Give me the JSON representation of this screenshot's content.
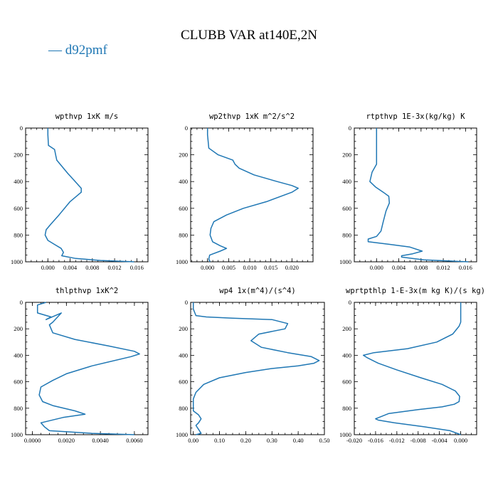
{
  "title": "CLUBB VAR at140E,2N",
  "legend": {
    "label": "— d92pmf",
    "color": "#1f77b4"
  },
  "chart_data": [
    {
      "type": "line",
      "title": "wpthvp  1xK m/s",
      "xlim": [
        -0.004,
        0.018
      ],
      "ylim": [
        1000,
        0
      ],
      "xticks": [
        0.0,
        0.004,
        0.008,
        0.012,
        0.016
      ],
      "xtick_labels": [
        "0.000",
        "0.004",
        "0.008",
        "0.012",
        "0.016"
      ],
      "yticks": [
        0,
        200,
        400,
        600,
        800,
        1000
      ],
      "ytick_labels": [
        "0",
        "200",
        "400",
        "600",
        "800",
        "1000"
      ],
      "series": [
        {
          "color": "#1f77b4",
          "x": [
            0.0,
            0.0,
            0.0001,
            0.0012,
            0.0014,
            0.0016,
            0.0026,
            0.0036,
            0.0047,
            0.006,
            0.006,
            0.004,
            0.002,
            0.0005,
            -0.0003,
            -0.0005,
            0.0,
            0.0012,
            0.0024,
            0.0028,
            0.0025,
            0.005,
            0.0095,
            0.0155
          ],
          "y": [
            0,
            50,
            130,
            160,
            200,
            240,
            290,
            340,
            390,
            450,
            480,
            550,
            650,
            720,
            760,
            800,
            840,
            870,
            900,
            930,
            955,
            975,
            990,
            1000
          ]
        }
      ]
    },
    {
      "type": "line",
      "title": "wp2thvp  1xK m^2/s^2",
      "xlim": [
        -0.004,
        0.025
      ],
      "ylim": [
        1000,
        0
      ],
      "xticks": [
        0.0,
        0.005,
        0.01,
        0.015,
        0.02
      ],
      "xtick_labels": [
        "0.000",
        "0.005",
        "0.010",
        "0.015",
        "0.020"
      ],
      "yticks": [
        0,
        200,
        400,
        600,
        800,
        1000
      ],
      "ytick_labels": [
        "0",
        "200",
        "400",
        "600",
        "800",
        "1000"
      ],
      "series": [
        {
          "color": "#1f77b4",
          "x": [
            0.0,
            0.0,
            0.0003,
            0.0025,
            0.006,
            0.0065,
            0.0075,
            0.011,
            0.0165,
            0.02,
            0.0215,
            0.02,
            0.014,
            0.0085,
            0.0045,
            0.0015,
            0.0008,
            0.0006,
            0.0012,
            0.003,
            0.0045,
            0.003,
            0.0005,
            0.0003,
            0.0006
          ],
          "y": [
            0,
            50,
            150,
            200,
            240,
            270,
            300,
            350,
            400,
            430,
            450,
            480,
            550,
            600,
            650,
            700,
            750,
            800,
            850,
            880,
            900,
            920,
            950,
            980,
            1000
          ]
        }
      ]
    },
    {
      "type": "line",
      "title": "rtpthvp  1E-3x(kg/kg) K",
      "xlim": [
        -0.004,
        0.018
      ],
      "ylim": [
        1000,
        0
      ],
      "xticks": [
        0.0,
        0.004,
        0.008,
        0.012,
        0.016
      ],
      "xtick_labels": [
        "0.000",
        "0.004",
        "0.008",
        "0.012",
        "0.016"
      ],
      "yticks": [
        0,
        200,
        400,
        600,
        800,
        1000
      ],
      "ytick_labels": [
        "0",
        "200",
        "400",
        "600",
        "800",
        "1000"
      ],
      "series": [
        {
          "color": "#1f77b4",
          "x": [
            0.0,
            0.0,
            0.0,
            -0.0008,
            -0.0012,
            -0.0002,
            0.0012,
            0.0022,
            0.0023,
            0.0017,
            0.0012,
            0.0008,
            0.0,
            -0.0015,
            -0.0015,
            0.0025,
            0.006,
            0.0082,
            0.0065,
            0.0045,
            0.0045,
            0.0085,
            0.0165
          ],
          "y": [
            0,
            100,
            270,
            330,
            400,
            440,
            480,
            510,
            560,
            620,
            700,
            770,
            810,
            830,
            850,
            870,
            890,
            920,
            940,
            955,
            965,
            985,
            1000
          ]
        }
      ]
    },
    {
      "type": "line",
      "title": "thlpthvp  1xK^2",
      "xlim": [
        -0.0004,
        0.0068
      ],
      "ylim": [
        1000,
        0
      ],
      "xticks": [
        0.0,
        0.002,
        0.004,
        0.006
      ],
      "xtick_labels": [
        "0.0000",
        "0.0020",
        "0.0040",
        "0.0060"
      ],
      "yticks": [
        0,
        200,
        400,
        600,
        800,
        1000
      ],
      "ytick_labels": [
        "0",
        "200",
        "400",
        "600",
        "800",
        "1000"
      ],
      "series": [
        {
          "color": "#1f77b4",
          "x": [
            0.0008,
            0.0003,
            0.0003,
            0.0011,
            0.0008,
            0.0017,
            0.0012,
            0.001,
            0.0012,
            0.0025,
            0.0045,
            0.006,
            0.0063,
            0.0058,
            0.0035,
            0.002,
            0.0012,
            0.0005,
            0.0004,
            0.0006,
            0.0012,
            0.0025,
            0.0031,
            0.0018,
            0.0005,
            0.0007,
            0.001,
            0.0035,
            0.006
          ],
          "y": [
            0,
            20,
            80,
            110,
            130,
            80,
            150,
            170,
            230,
            280,
            330,
            370,
            390,
            410,
            480,
            540,
            590,
            640,
            700,
            750,
            780,
            820,
            845,
            870,
            910,
            940,
            970,
            990,
            1000
          ]
        }
      ]
    },
    {
      "type": "line",
      "title": "wp4   1x(m^4)/(s^4)",
      "xlim": [
        -0.01,
        0.5
      ],
      "ylim": [
        1000,
        0
      ],
      "xticks": [
        0.0,
        0.1,
        0.2,
        0.3,
        0.4,
        0.5
      ],
      "xtick_labels": [
        "0.00",
        "0.10",
        "0.20",
        "0.30",
        "0.40",
        "0.50"
      ],
      "yticks": [
        0,
        200,
        400,
        600,
        800,
        1000
      ],
      "ytick_labels": [
        "0",
        "200",
        "400",
        "600",
        "800",
        "1000"
      ],
      "series": [
        {
          "color": "#1f77b4",
          "x": [
            0.0,
            0.0,
            0.01,
            0.05,
            0.15,
            0.3,
            0.36,
            0.35,
            0.25,
            0.22,
            0.26,
            0.36,
            0.45,
            0.48,
            0.46,
            0.4,
            0.3,
            0.2,
            0.1,
            0.04,
            0.01,
            0.0,
            0.0,
            0.0,
            0.02,
            0.03,
            0.02,
            0.01,
            0.02,
            0.03,
            0.01
          ],
          "y": [
            0,
            50,
            100,
            110,
            120,
            130,
            160,
            200,
            240,
            290,
            340,
            380,
            410,
            440,
            460,
            480,
            500,
            530,
            570,
            620,
            680,
            730,
            780,
            820,
            850,
            880,
            910,
            930,
            960,
            990,
            1000
          ]
        }
      ]
    },
    {
      "type": "line",
      "title": "wprtpthlp  1-E-3x(m kg K)/(s kg)",
      "xlim": [
        -0.02,
        0.003
      ],
      "ylim": [
        1000,
        0
      ],
      "xticks": [
        -0.02,
        -0.016,
        -0.012,
        -0.008,
        -0.004,
        0.0
      ],
      "xtick_labels": [
        "-0.020",
        "-0.016",
        "-0.012",
        "-0.008",
        "-0.004",
        "0.000"
      ],
      "yticks": [
        0,
        200,
        400,
        600,
        800,
        1000
      ],
      "ytick_labels": [
        "0",
        "200",
        "400",
        "600",
        "800",
        "1000"
      ],
      "series": [
        {
          "color": "#1f77b4",
          "x": [
            0.0,
            0.0,
            0.0,
            -0.0003,
            -0.0015,
            -0.0045,
            -0.01,
            -0.0163,
            -0.0183,
            -0.0175,
            -0.0155,
            -0.012,
            -0.0075,
            -0.0035,
            -0.001,
            -0.0002,
            -0.0003,
            -0.0012,
            -0.0035,
            -0.008,
            -0.0135,
            -0.016,
            -0.0155,
            -0.0125,
            -0.007,
            -0.002,
            0.0
          ],
          "y": [
            0,
            100,
            150,
            180,
            240,
            300,
            350,
            380,
            400,
            420,
            460,
            510,
            570,
            620,
            670,
            710,
            750,
            770,
            790,
            810,
            840,
            880,
            890,
            910,
            940,
            970,
            1000
          ]
        }
      ]
    }
  ]
}
